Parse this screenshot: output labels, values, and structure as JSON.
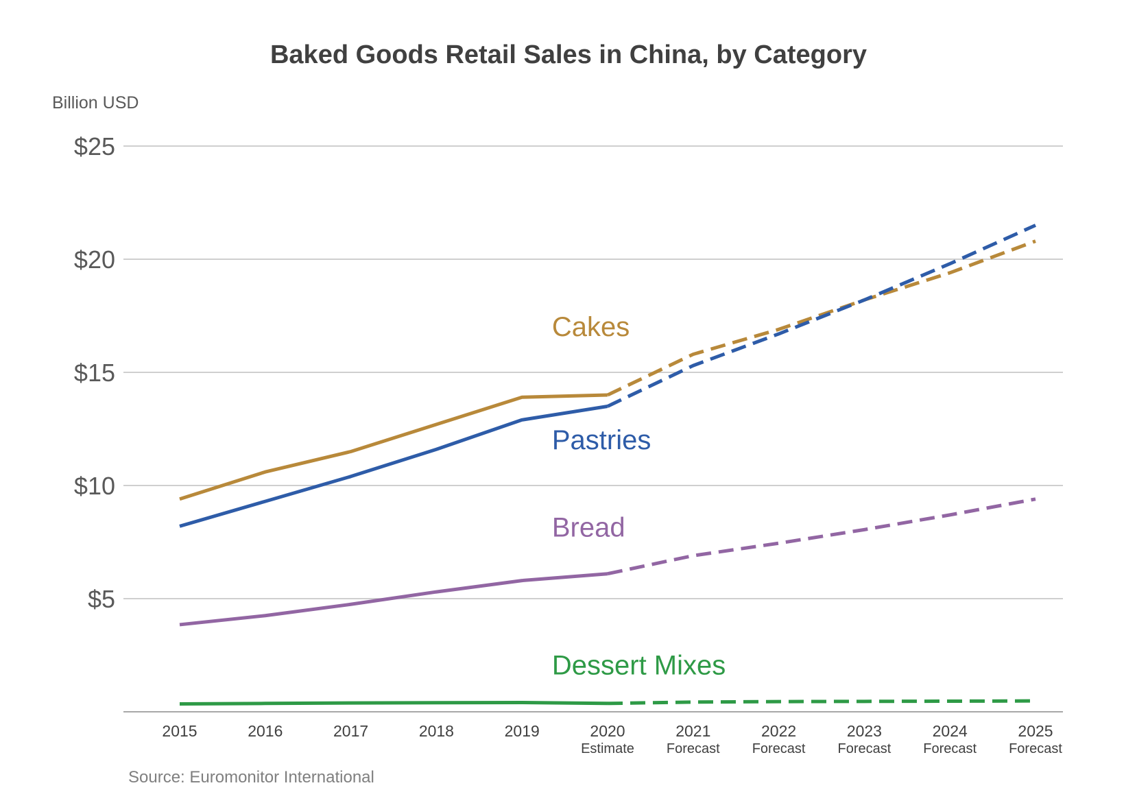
{
  "chart_data": {
    "type": "line",
    "title": "Baked Goods Retail Sales in China, by Category",
    "ylabel": "Billion USD",
    "xlabel": "",
    "source": "Source: Euromonitor International",
    "ylim": [
      0,
      25
    ],
    "yticks": [
      {
        "value": 25,
        "label": "$25"
      },
      {
        "value": 20,
        "label": "$20"
      },
      {
        "value": 15,
        "label": "$15"
      },
      {
        "value": 10,
        "label": "$10"
      },
      {
        "value": 5,
        "label": "$5"
      }
    ],
    "x": [
      "2015",
      "2016",
      "2017",
      "2018",
      "2019",
      "2020",
      "2021",
      "2022",
      "2023",
      "2024",
      "2025"
    ],
    "x_sublabels": [
      "",
      "",
      "",
      "",
      "",
      "Estimate",
      "Forecast",
      "Forecast",
      "Forecast",
      "Forecast",
      "Forecast"
    ],
    "actual_through": "2020",
    "grid": true,
    "series": [
      {
        "name": "Cakes",
        "color": "#b8893a",
        "values": [
          9.4,
          10.6,
          11.5,
          12.7,
          13.9,
          14.0,
          15.8,
          16.9,
          18.2,
          19.4,
          20.8
        ]
      },
      {
        "name": "Pastries",
        "color": "#2e5ca8",
        "values": [
          8.2,
          9.3,
          10.4,
          11.6,
          12.9,
          13.5,
          15.3,
          16.7,
          18.2,
          19.8,
          21.5
        ]
      },
      {
        "name": "Bread",
        "color": "#9266a3",
        "values": [
          3.85,
          4.25,
          4.75,
          5.3,
          5.8,
          6.1,
          6.9,
          7.45,
          8.05,
          8.7,
          9.4
        ]
      },
      {
        "name": "Dessert Mixes",
        "color": "#2e9a46",
        "values": [
          0.35,
          0.37,
          0.39,
          0.4,
          0.41,
          0.37,
          0.43,
          0.45,
          0.46,
          0.47,
          0.48
        ]
      }
    ]
  }
}
